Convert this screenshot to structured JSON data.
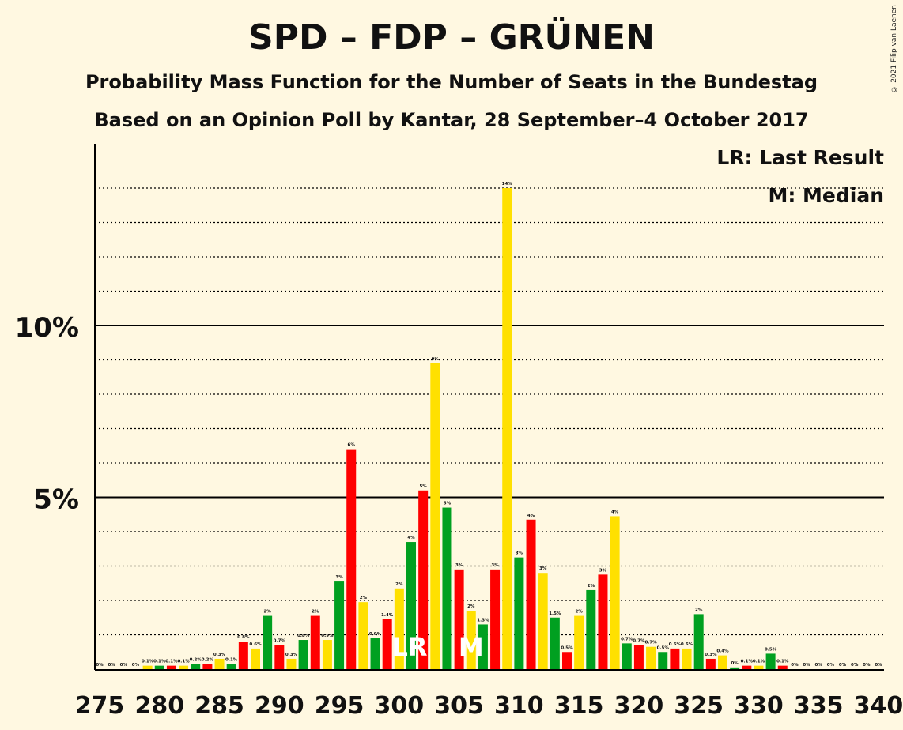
{
  "header": {
    "title": "SPD – FDP – GRÜNEN",
    "subtitle": "Probability Mass Function for the Number of Seats in the Bundestag",
    "subtitle2": "Based on an Opinion Poll by Kantar, 28 September–4 October 2017",
    "copyright": "© 2021 Filip van Laenen"
  },
  "legend": {
    "lr": "LR: Last Result",
    "median": "M: Median"
  },
  "chart_data": {
    "type": "bar",
    "title": "SPD – FDP – GRÜNEN",
    "x": [
      275,
      276,
      277,
      278,
      279,
      280,
      281,
      282,
      283,
      284,
      285,
      286,
      287,
      288,
      289,
      290,
      291,
      292,
      293,
      294,
      295,
      296,
      297,
      298,
      299,
      300,
      301,
      302,
      303,
      304,
      305,
      306,
      307,
      308,
      309,
      310,
      311,
      312,
      313,
      314,
      315,
      316,
      317,
      318,
      319,
      320,
      321,
      322,
      323,
      324,
      325,
      326,
      327,
      328,
      329,
      330,
      331,
      332,
      333,
      334,
      335,
      336,
      337,
      338,
      339,
      340
    ],
    "values": [
      0,
      0,
      0,
      0,
      0.1,
      0.1,
      0.1,
      0.1,
      0.15,
      0.15,
      0.3,
      0.15,
      0.8,
      0.6,
      1.55,
      0.7,
      0.3,
      0.85,
      1.55,
      0.85,
      2.55,
      6.4,
      1.95,
      0.9,
      1.45,
      2.35,
      3.7,
      5.2,
      8.9,
      4.7,
      2.9,
      1.7,
      1.3,
      2.9,
      14,
      3.25,
      4.35,
      2.8,
      1.5,
      0.5,
      1.55,
      2.3,
      2.75,
      4.45,
      0.75,
      0.7,
      0.65,
      0.5,
      0.6,
      0.6,
      1.6,
      0.3,
      0.4,
      0.05,
      0.1,
      0.1,
      0.45,
      0.1,
      0,
      0,
      0,
      0,
      0,
      0,
      0,
      0
    ],
    "labels": [
      "0%",
      "0%",
      "0%",
      "0%",
      "0.1%",
      "0.1%",
      "0.1%",
      "0.1%",
      "0.2%",
      "0.2%",
      "0.3%",
      "0.1%",
      "0.8%",
      "0.6%",
      "2%",
      "0.7%",
      "0.3%",
      "0.8%",
      "2%",
      "0.9%",
      "3%",
      "6%",
      "2%",
      "0.9%",
      "1.4%",
      "2%",
      "4%",
      "5%",
      "9%",
      "5%",
      "3%",
      "2%",
      "1.3%",
      "3%",
      "14%",
      "3%",
      "4%",
      "3%",
      "1.5%",
      "0.5%",
      "2%",
      "2%",
      "3%",
      "4%",
      "0.7%",
      "0.7%",
      "0.7%",
      "0.5%",
      "0.6%",
      "0.6%",
      "2%",
      "0.3%",
      "0.4%",
      "0%",
      "0.1%",
      "0.1%",
      "0.5%",
      "0.1%",
      "0%",
      "0%",
      "0%",
      "0%",
      "0%",
      "0%",
      "0%",
      "0%"
    ],
    "x_ticks": [
      "275",
      "280",
      "285",
      "290",
      "295",
      "300",
      "305",
      "310",
      "315",
      "320",
      "325",
      "330",
      "335",
      "340"
    ],
    "y_ticks": [
      "5%",
      "10%"
    ],
    "ylim": [
      0,
      15
    ],
    "colors": {
      "red": "#ff0000",
      "yellow": "#ffe000",
      "green": "#00a020"
    },
    "color_cycle": [
      "red",
      "yellow",
      "green"
    ],
    "last_result_seat": 301,
    "last_result_marker": "LR",
    "median_seat": 306,
    "median_marker": "M",
    "grid": true
  }
}
